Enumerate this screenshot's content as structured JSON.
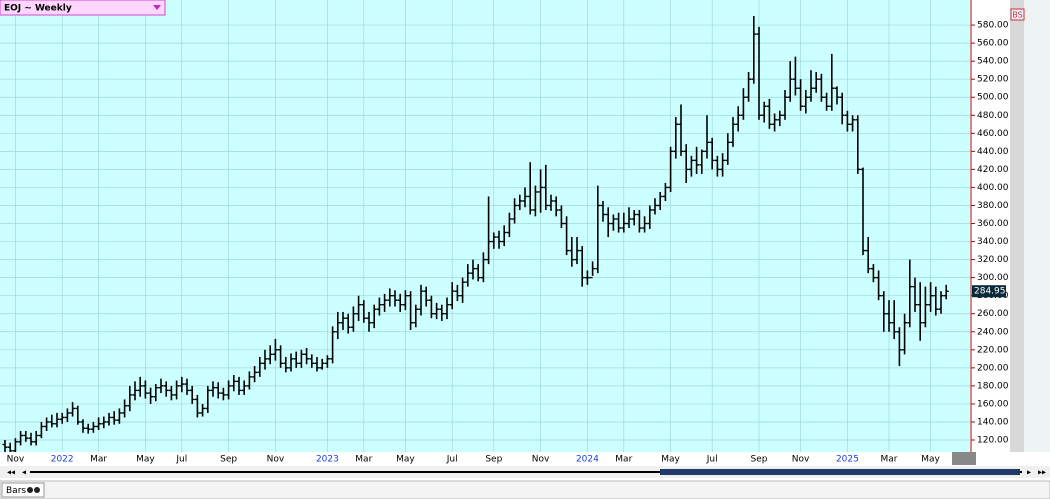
{
  "chart_data": {
    "type": "ohlc",
    "title": "EOJ ~ Weekly",
    "color": "#000000",
    "grid": true,
    "ylim": [
      106.7,
      607.8
    ],
    "yticks": [
      {
        "value": 120,
        "label": "120.00"
      },
      {
        "value": 140,
        "label": "140.00"
      },
      {
        "value": 160,
        "label": "160.00"
      },
      {
        "value": 180,
        "label": "180.00"
      },
      {
        "value": 200,
        "label": "200.00"
      },
      {
        "value": 220,
        "label": "220.00"
      },
      {
        "value": 240,
        "label": "240.00"
      },
      {
        "value": 260,
        "label": "260.00"
      },
      {
        "value": 280,
        "label": "280.00"
      },
      {
        "value": 300,
        "label": "300.00"
      },
      {
        "value": 320,
        "label": "320.00"
      },
      {
        "value": 340,
        "label": "340.00"
      },
      {
        "value": 360,
        "label": "360.00"
      },
      {
        "value": 380,
        "label": "380.00"
      },
      {
        "value": 400,
        "label": "400.00"
      },
      {
        "value": 420,
        "label": "420.00"
      },
      {
        "value": 440,
        "label": "440.00"
      },
      {
        "value": 460,
        "label": "460.00"
      },
      {
        "value": 480,
        "label": "480.00"
      },
      {
        "value": 500,
        "label": "500.00"
      },
      {
        "value": 520,
        "label": "520.00"
      },
      {
        "value": 540,
        "label": "540.00"
      },
      {
        "value": 560,
        "label": "560.00"
      },
      {
        "value": 580,
        "label": "580.00"
      }
    ],
    "categories": [
      null,
      null,
      "Nov",
      null,
      null,
      null,
      null,
      null,
      null,
      null,
      null,
      "2022",
      null,
      null,
      null,
      null,
      null,
      null,
      "Mar",
      null,
      null,
      null,
      null,
      null,
      null,
      null,
      null,
      "May",
      null,
      null,
      null,
      null,
      null,
      null,
      "Jul",
      null,
      null,
      null,
      null,
      null,
      null,
      null,
      null,
      "Sep",
      null,
      null,
      null,
      null,
      null,
      null,
      null,
      null,
      "Nov",
      null,
      null,
      null,
      null,
      null,
      null,
      null,
      null,
      null,
      "2023",
      null,
      null,
      null,
      null,
      null,
      null,
      "Mar",
      null,
      null,
      null,
      null,
      null,
      null,
      null,
      "May",
      null,
      null,
      null,
      null,
      null,
      null,
      null,
      null,
      "Jul",
      null,
      null,
      null,
      null,
      null,
      null,
      null,
      "Sep",
      null,
      null,
      null,
      null,
      null,
      null,
      null,
      null,
      "Nov",
      null,
      null,
      null,
      null,
      null,
      null,
      null,
      null,
      "2024",
      null,
      null,
      null,
      null,
      null,
      null,
      "Mar",
      null,
      null,
      null,
      null,
      null,
      null,
      null,
      null,
      "May",
      null,
      null,
      null,
      null,
      null,
      null,
      null,
      "Jul",
      null,
      null,
      null,
      null,
      null,
      null,
      null,
      null,
      "Sep",
      null,
      null,
      null,
      null,
      null,
      null,
      null,
      "Nov",
      null,
      null,
      null,
      null,
      null,
      null,
      null,
      null,
      "2025",
      null,
      null,
      null,
      null,
      null,
      null,
      null,
      "Mar",
      null,
      null,
      null,
      null,
      null,
      null,
      null,
      "May",
      null,
      null,
      null
    ],
    "open": [
      115,
      112,
      108,
      118,
      125,
      122,
      118,
      125,
      135,
      140,
      138,
      143,
      145,
      150,
      155,
      140,
      133,
      132,
      135,
      138,
      140,
      145,
      142,
      150,
      158,
      170,
      175,
      180,
      172,
      168,
      178,
      180,
      175,
      170,
      180,
      182,
      175,
      165,
      150,
      155,
      175,
      178,
      172,
      170,
      180,
      185,
      175,
      180,
      190,
      195,
      205,
      210,
      215,
      220,
      205,
      200,
      210,
      205,
      215,
      210,
      205,
      200,
      205,
      210,
      240,
      250,
      255,
      245,
      260,
      270,
      255,
      250,
      265,
      270,
      275,
      280,
      275,
      270,
      280,
      250,
      265,
      285,
      275,
      260,
      265,
      260,
      270,
      285,
      280,
      295,
      305,
      310,
      300,
      320,
      340,
      345,
      340,
      350,
      365,
      380,
      385,
      390,
      375,
      395,
      400,
      380,
      385,
      375,
      360,
      330,
      320,
      330,
      300,
      300,
      310,
      380,
      370,
      360,
      365,
      355,
      360,
      365,
      370,
      355,
      360,
      375,
      380,
      390,
      400,
      440,
      470,
      440,
      420,
      430,
      425,
      440,
      450,
      430,
      420,
      430,
      450,
      470,
      480,
      500,
      520,
      570,
      480,
      490,
      470,
      475,
      480,
      500,
      520,
      510,
      490,
      500,
      510,
      520,
      500,
      490,
      510,
      500,
      480,
      470,
      475,
      420,
      330,
      310,
      300,
      280,
      260,
      250,
      240,
      220,
      250,
      290,
      270,
      250,
      270,
      280,
      265,
      280
    ],
    "high": [
      120,
      117,
      122,
      130,
      130,
      128,
      130,
      140,
      145,
      148,
      150,
      150,
      155,
      162,
      158,
      143,
      138,
      140,
      145,
      146,
      150,
      152,
      155,
      165,
      180,
      185,
      190,
      186,
      178,
      182,
      188,
      185,
      180,
      186,
      190,
      188,
      180,
      170,
      160,
      180,
      185,
      184,
      178,
      186,
      192,
      190,
      186,
      196,
      202,
      212,
      220,
      225,
      232,
      225,
      212,
      216,
      218,
      220,
      222,
      215,
      212,
      210,
      214,
      246,
      262,
      262,
      260,
      268,
      280,
      275,
      262,
      270,
      278,
      282,
      288,
      286,
      282,
      286,
      285,
      270,
      292,
      290,
      280,
      272,
      270,
      278,
      295,
      292,
      300,
      315,
      320,
      315,
      328,
      390,
      350,
      352,
      358,
      372,
      388,
      392,
      400,
      428,
      402,
      420,
      425,
      392,
      390,
      380,
      368,
      345,
      345,
      335,
      308,
      318,
      402,
      385,
      378,
      370,
      372,
      372,
      378,
      375,
      375,
      368,
      380,
      388,
      395,
      405,
      445,
      478,
      492,
      448,
      435,
      445,
      442,
      480,
      455,
      435,
      438,
      460,
      478,
      490,
      510,
      528,
      590,
      578,
      495,
      498,
      482,
      485,
      508,
      540,
      545,
      520,
      508,
      530,
      528,
      526,
      505,
      548,
      512,
      505,
      485,
      480,
      480,
      422,
      345,
      315,
      308,
      285,
      275,
      275,
      245,
      260,
      320,
      300,
      295,
      290,
      295,
      290,
      285,
      292
    ],
    "low": [
      106,
      102,
      104,
      114,
      118,
      114,
      114,
      122,
      130,
      134,
      134,
      138,
      140,
      146,
      137,
      128,
      127,
      128,
      131,
      133,
      136,
      137,
      138,
      145,
      152,
      164,
      168,
      166,
      160,
      163,
      172,
      168,
      164,
      165,
      173,
      170,
      160,
      145,
      146,
      150,
      168,
      166,
      164,
      165,
      174,
      170,
      170,
      176,
      184,
      190,
      198,
      204,
      208,
      200,
      195,
      196,
      200,
      200,
      204,
      200,
      196,
      198,
      200,
      205,
      232,
      242,
      238,
      240,
      252,
      250,
      240,
      244,
      258,
      262,
      268,
      268,
      262,
      264,
      242,
      245,
      258,
      268,
      255,
      254,
      252,
      254,
      265,
      274,
      272,
      290,
      298,
      296,
      295,
      315,
      332,
      332,
      335,
      345,
      360,
      375,
      378,
      370,
      368,
      372,
      375,
      374,
      368,
      355,
      325,
      312,
      315,
      290,
      292,
      302,
      305,
      362,
      345,
      352,
      350,
      350,
      355,
      358,
      350,
      350,
      354,
      370,
      375,
      385,
      395,
      432,
      435,
      405,
      412,
      415,
      415,
      432,
      420,
      412,
      412,
      425,
      445,
      462,
      475,
      495,
      515,
      475,
      472,
      465,
      462,
      468,
      475,
      495,
      502,
      485,
      482,
      495,
      505,
      495,
      485,
      485,
      492,
      470,
      462,
      462,
      415,
      325,
      305,
      295,
      275,
      240,
      240,
      232,
      202,
      215,
      245,
      262,
      230,
      245,
      262,
      258,
      260,
      276
    ],
    "close": [
      112,
      108,
      118,
      125,
      122,
      118,
      125,
      135,
      140,
      138,
      143,
      145,
      150,
      155,
      140,
      133,
      132,
      135,
      138,
      140,
      145,
      142,
      150,
      158,
      170,
      175,
      180,
      172,
      168,
      178,
      180,
      175,
      170,
      180,
      182,
      175,
      165,
      150,
      155,
      175,
      178,
      172,
      170,
      180,
      185,
      175,
      180,
      190,
      195,
      205,
      210,
      215,
      220,
      205,
      200,
      210,
      205,
      215,
      210,
      205,
      200,
      205,
      210,
      240,
      250,
      255,
      245,
      260,
      270,
      255,
      250,
      265,
      270,
      275,
      280,
      275,
      270,
      280,
      250,
      265,
      285,
      275,
      260,
      265,
      260,
      270,
      285,
      280,
      295,
      305,
      310,
      300,
      320,
      340,
      345,
      340,
      350,
      365,
      380,
      385,
      390,
      375,
      395,
      400,
      380,
      385,
      375,
      360,
      330,
      320,
      330,
      300,
      300,
      310,
      380,
      370,
      360,
      365,
      355,
      360,
      365,
      370,
      355,
      360,
      375,
      380,
      390,
      400,
      440,
      470,
      440,
      420,
      430,
      425,
      440,
      450,
      430,
      420,
      430,
      450,
      470,
      480,
      500,
      520,
      570,
      480,
      490,
      470,
      475,
      480,
      500,
      520,
      510,
      490,
      500,
      510,
      520,
      500,
      490,
      510,
      500,
      480,
      470,
      475,
      420,
      330,
      310,
      300,
      280,
      260,
      250,
      240,
      220,
      250,
      290,
      270,
      250,
      270,
      280,
      265,
      280,
      284.95
    ]
  },
  "ui": {
    "toolbar_label": "Bars",
    "panel_button": "BS"
  }
}
